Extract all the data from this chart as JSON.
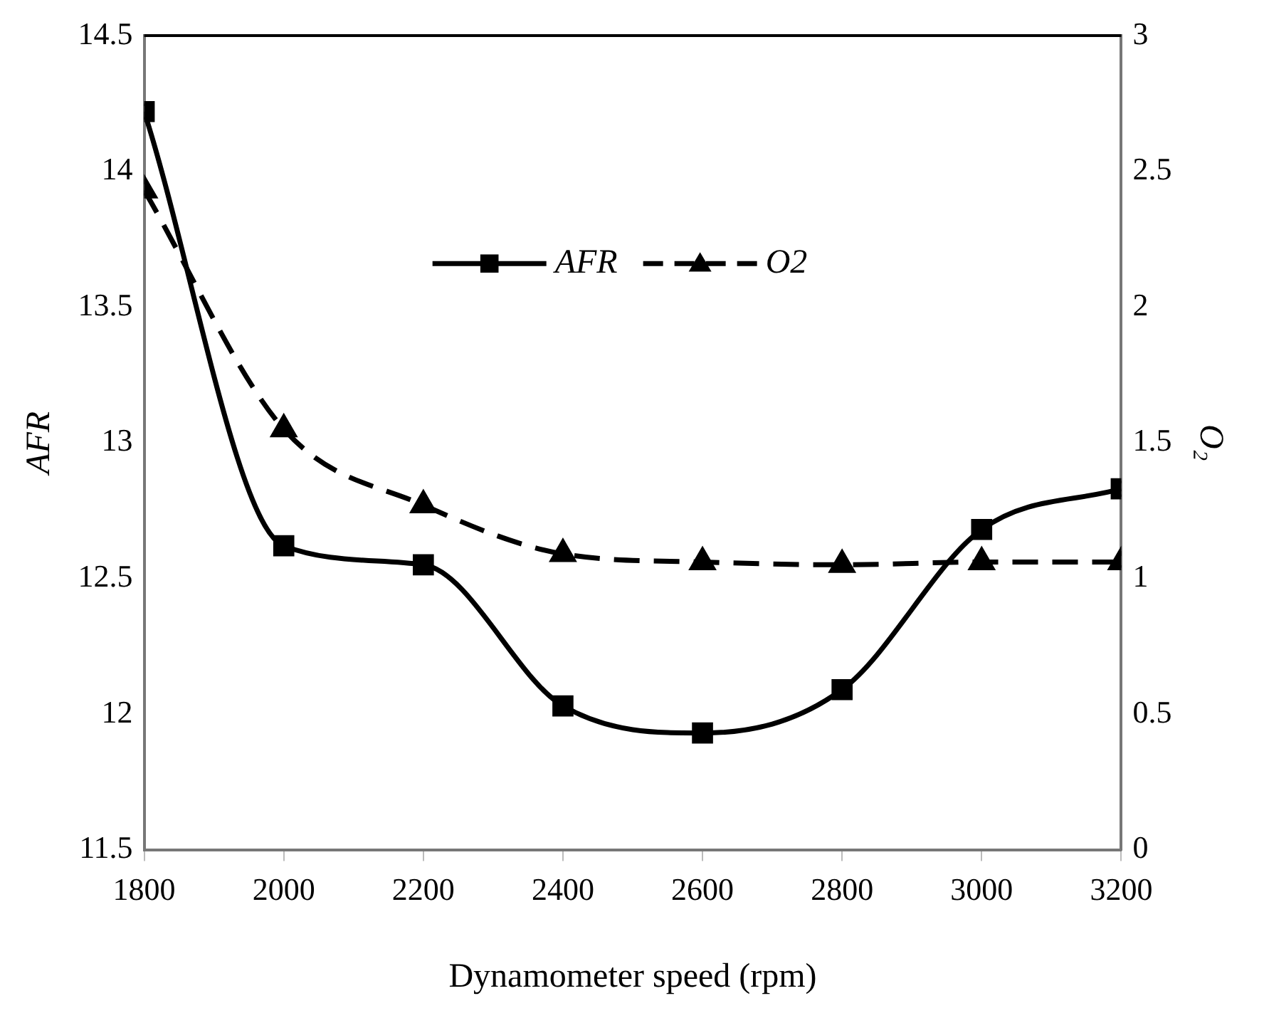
{
  "chart_data": {
    "type": "line",
    "xlabel": "Dynamometer speed (rpm)",
    "ylabel": "AFR",
    "y2label": "O₂",
    "x": [
      1800,
      2000,
      2200,
      2400,
      2600,
      2800,
      3000,
      3200
    ],
    "xlim": [
      1800,
      3200
    ],
    "xticks": [
      1800,
      2000,
      2200,
      2400,
      2600,
      2800,
      3000,
      3200
    ],
    "ylim": [
      11.5,
      14.5
    ],
    "yticks": [
      11.5,
      12,
      12.5,
      13,
      13.5,
      14,
      14.5
    ],
    "y2lim": [
      0,
      3
    ],
    "y2ticks": [
      0,
      0.5,
      1,
      1.5,
      2,
      2.5,
      3
    ],
    "grid": false,
    "legend": "top",
    "series": [
      {
        "name": "AFR",
        "color": "#000000",
        "marker": "square",
        "line_style": "solid",
        "values": [
          14.22,
          12.62,
          12.55,
          12.03,
          11.93,
          12.09,
          12.68,
          12.83
        ]
      },
      {
        "name": "O2",
        "color": "#000000",
        "marker": "triangle",
        "line_style": "dashed",
        "axis": "y2",
        "values": [
          2.43,
          1.55,
          1.27,
          1.09,
          1.06,
          1.05,
          1.06,
          1.06
        ]
      }
    ]
  }
}
